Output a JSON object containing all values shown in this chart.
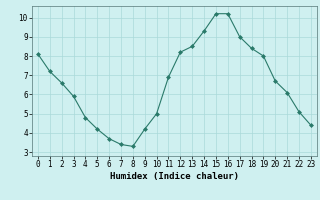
{
  "x": [
    0,
    1,
    2,
    3,
    4,
    5,
    6,
    7,
    8,
    9,
    10,
    11,
    12,
    13,
    14,
    15,
    16,
    17,
    18,
    19,
    20,
    21,
    22,
    23
  ],
  "y": [
    8.1,
    7.2,
    6.6,
    5.9,
    4.8,
    4.2,
    3.7,
    3.4,
    3.3,
    4.2,
    5.0,
    6.9,
    8.2,
    8.5,
    9.3,
    10.2,
    10.2,
    9.0,
    8.4,
    8.0,
    6.7,
    6.1,
    5.1,
    4.4
  ],
  "xlabel": "Humidex (Indice chaleur)",
  "xlim": [
    -0.5,
    23.5
  ],
  "ylim": [
    2.8,
    10.6
  ],
  "yticks": [
    3,
    4,
    5,
    6,
    7,
    8,
    9,
    10
  ],
  "xticks": [
    0,
    1,
    2,
    3,
    4,
    5,
    6,
    7,
    8,
    9,
    10,
    11,
    12,
    13,
    14,
    15,
    16,
    17,
    18,
    19,
    20,
    21,
    22,
    23
  ],
  "line_color": "#2a7a6a",
  "marker": "D",
  "marker_size": 2.0,
  "line_width": 0.8,
  "bg_color": "#cff0f0",
  "grid_color": "#aadada",
  "axis_fontsize": 6.5,
  "tick_fontsize": 5.5,
  "xlabel_fontsize": 6.5
}
